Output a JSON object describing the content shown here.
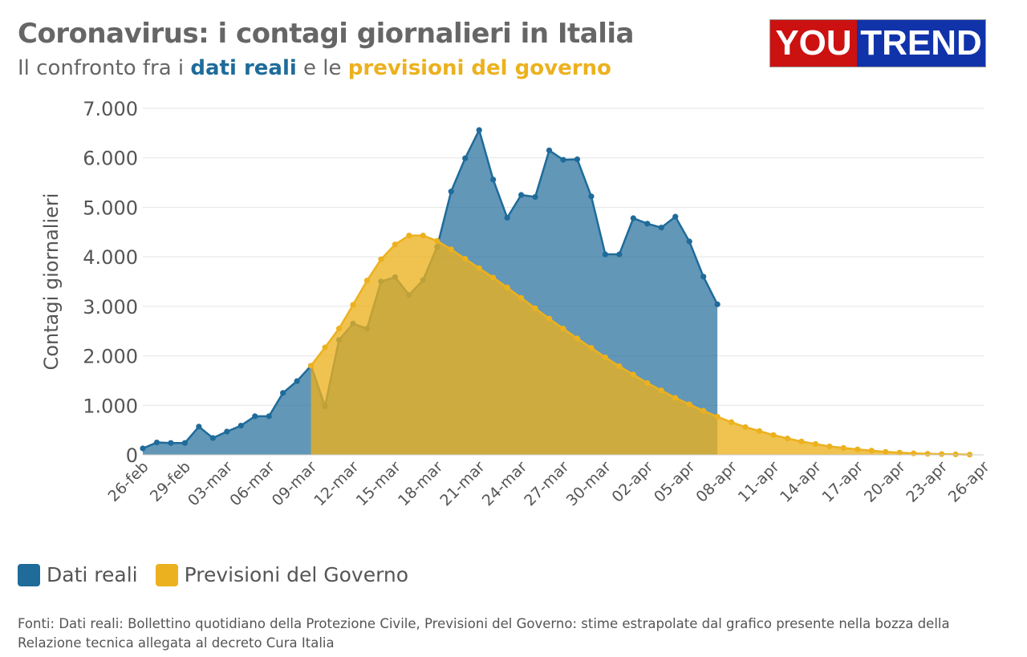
{
  "header": {
    "title": "Coronavirus: i contagi giornalieri in Italia",
    "subtitle_prefix": "Il confronto fra i ",
    "subtitle_real": "dati reali",
    "subtitle_mid": " e le ",
    "subtitle_forecast": "previsioni del governo"
  },
  "logo": {
    "part1": "YOU",
    "part2": "TREND",
    "color1": "#cc1111",
    "color2": "#1133aa"
  },
  "colors": {
    "real": "#1f6b9a",
    "forecast": "#ecb11e",
    "text": "#555555",
    "grid": "#e4e4e4"
  },
  "legend": {
    "real": "Dati reali",
    "forecast": "Previsioni del Governo"
  },
  "source": "Fonti: Dati reali: Bollettino quotidiano della Protezione Civile, Previsioni del Governo: stime estrapolate dal grafico presente nella bozza della Relazione tecnica allegata al decreto Cura Italia",
  "chart_data": {
    "type": "area",
    "ylabel": "Contagi giornalieri",
    "ylim": [
      0,
      7000
    ],
    "yticks": [
      0,
      1000,
      2000,
      3000,
      4000,
      5000,
      6000,
      7000
    ],
    "ytick_labels": [
      "0",
      "1.000",
      "2.000",
      "3.000",
      "4.000",
      "5.000",
      "6.000",
      "7.000"
    ],
    "x_labels": [
      "26-feb",
      "29-feb",
      "03-mar",
      "06-mar",
      "09-mar",
      "12-mar",
      "15-mar",
      "18-mar",
      "21-mar",
      "24-mar",
      "27-mar",
      "30-mar",
      "02-apr",
      "05-apr",
      "08-apr",
      "11-apr",
      "14-apr",
      "17-apr",
      "20-apr",
      "23-apr",
      "26-apr"
    ],
    "grid": true,
    "legend_position": "bottom-left",
    "series": [
      {
        "name": "Dati reali",
        "x_start": "26-feb",
        "values": [
          130,
          250,
          240,
          240,
          570,
          340,
          470,
          590,
          780,
          780,
          1250,
          1490,
          1800,
          980,
          2320,
          2650,
          2550,
          3500,
          3590,
          3230,
          3530,
          4200,
          5320,
          5990,
          6560,
          5560,
          4790,
          5250,
          5210,
          6150,
          5960,
          5970,
          5220,
          4050,
          4050,
          4780,
          4670,
          4590,
          4810,
          4310,
          3600,
          3040
        ]
      },
      {
        "name": "Previsioni del Governo",
        "x_start": "09-mar",
        "values": [
          1800,
          2170,
          2550,
          3030,
          3520,
          3950,
          4250,
          4430,
          4430,
          4320,
          4150,
          3960,
          3770,
          3580,
          3380,
          3170,
          2960,
          2750,
          2550,
          2350,
          2160,
          1970,
          1790,
          1620,
          1450,
          1300,
          1150,
          1020,
          890,
          770,
          660,
          560,
          480,
          400,
          330,
          270,
          220,
          170,
          140,
          110,
          85,
          60,
          45,
          30,
          20,
          15,
          10,
          5
        ]
      }
    ]
  }
}
